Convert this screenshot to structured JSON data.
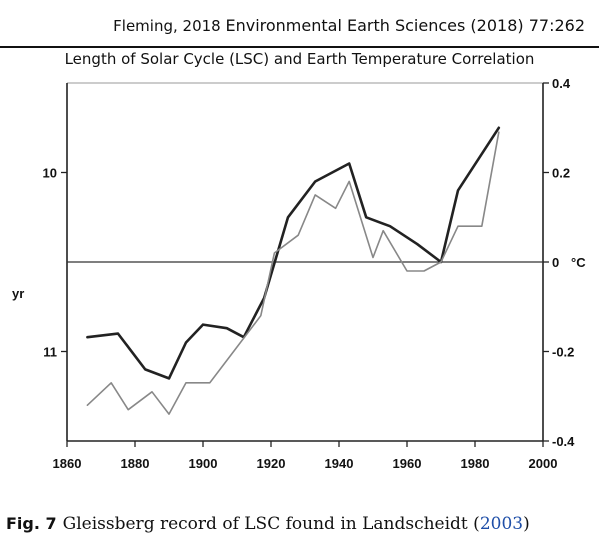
{
  "header": {
    "author_year": "Fleming, 2018",
    "journal": "Environmental Earth Sciences (2018) 77:262"
  },
  "caption": {
    "fig_label": "Fig. 7",
    "text": "Gleissberg record of LSC found in Landscheidt (",
    "ref_year": "2003",
    "close": ")"
  },
  "chart_data": {
    "type": "line",
    "title": "Length of Solar Cycle (LSC) and Earth Temperature Correlation",
    "xlabel": "",
    "ylabel_left": "yr",
    "ylabel_right": "°C",
    "xlim": [
      1860,
      2000
    ],
    "x_ticks": [
      1860,
      1880,
      1900,
      1920,
      1940,
      1960,
      1980,
      2000
    ],
    "ylim_left_inverted": [
      9.5,
      11.5
    ],
    "y_ticks_left": [
      10,
      11
    ],
    "ylim_right": [
      -0.4,
      0.4
    ],
    "y_ticks_right": [
      -0.4,
      -0.2,
      0,
      0.2,
      0.4
    ],
    "y_ticks_right_labels": [
      "-0.4",
      "-0.2",
      "0",
      "0.2",
      "0.4"
    ],
    "grid": false,
    "zero_line": true,
    "series": [
      {
        "name": "",
        "axis": "left",
        "style": "dark-thick",
        "color": "#222222",
        "x": [
          1866,
          1875,
          1883,
          1890,
          1895,
          1900,
          1907,
          1912,
          1918,
          1925,
          1933,
          1943,
          1948,
          1955,
          1963,
          1970,
          1975,
          1987
        ],
        "y": [
          10.92,
          10.9,
          11.1,
          11.15,
          10.95,
          10.85,
          10.87,
          10.92,
          10.7,
          10.25,
          10.05,
          9.95,
          10.25,
          10.3,
          10.4,
          10.5,
          10.1,
          9.75
        ]
      },
      {
        "name": "",
        "axis": "right",
        "style": "gray-thin",
        "color": "#888888",
        "x": [
          1866,
          1873,
          1878,
          1885,
          1890,
          1895,
          1902,
          1909,
          1917,
          1921,
          1928,
          1933,
          1939,
          1943,
          1950,
          1953,
          1960,
          1965,
          1970,
          1975,
          1982,
          1987
        ],
        "y": [
          -0.32,
          -0.27,
          -0.33,
          -0.29,
          -0.34,
          -0.27,
          -0.27,
          -0.2,
          -0.12,
          0.02,
          0.06,
          0.15,
          0.12,
          0.18,
          0.01,
          0.07,
          -0.02,
          -0.02,
          0.0,
          0.08,
          0.08,
          0.29
        ]
      }
    ]
  }
}
